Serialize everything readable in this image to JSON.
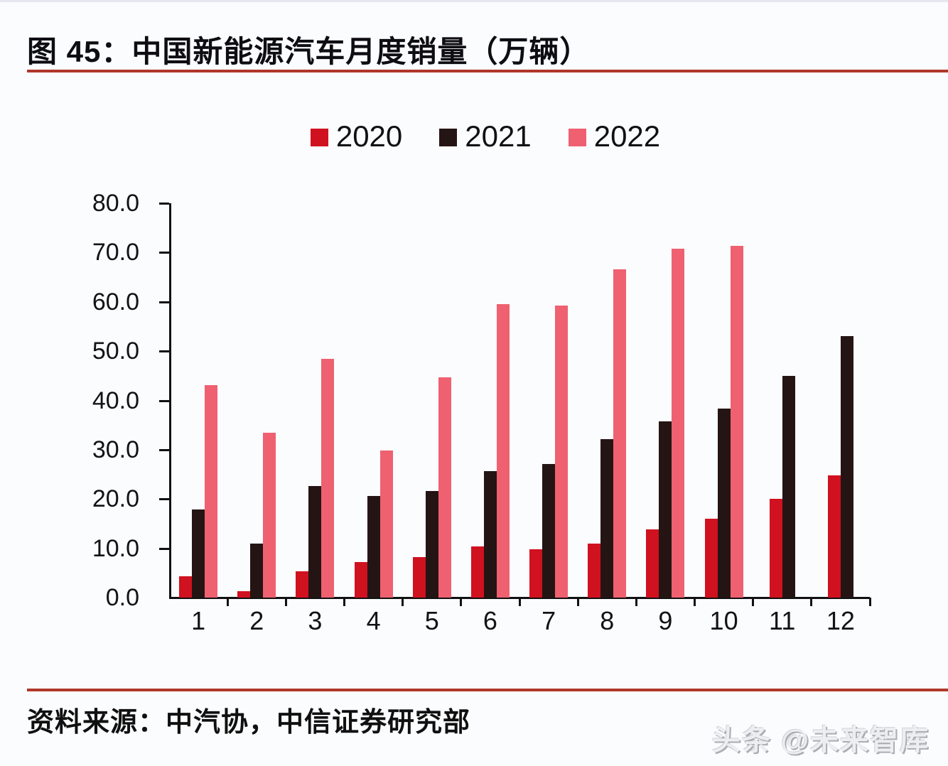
{
  "figure": {
    "title": "图 45：中国新能源汽车月度销量（万辆）",
    "source": "资料来源：中汽协，中信证券研究部",
    "watermark": "头条 @未来智库",
    "accent_rule_color": "#AF382A",
    "axis_color": "#141414",
    "background_color": "#fbfcfe"
  },
  "chart_data": {
    "type": "bar",
    "title": "中国新能源汽车月度销量（万辆）",
    "unit": "万辆",
    "categories": [
      "1",
      "2",
      "3",
      "4",
      "5",
      "6",
      "7",
      "8",
      "9",
      "10",
      "11",
      "12"
    ],
    "series": [
      {
        "name": "2020",
        "color": "#D0111F",
        "values": [
          4.4,
          1.3,
          5.3,
          7.2,
          8.2,
          10.4,
          9.8,
          10.9,
          13.8,
          16.0,
          20.0,
          24.8
        ]
      },
      {
        "name": "2021",
        "color": "#241514",
        "values": [
          17.9,
          11.0,
          22.6,
          20.6,
          21.7,
          25.6,
          27.1,
          32.1,
          35.7,
          38.3,
          45.0,
          53.1
        ]
      },
      {
        "name": "2022",
        "color": "#EF6170",
        "values": [
          43.1,
          33.4,
          48.4,
          29.9,
          44.7,
          59.6,
          59.3,
          66.6,
          70.8,
          71.4,
          null,
          null
        ]
      }
    ],
    "ylim": [
      0,
      80
    ],
    "y_ticks": [
      "0.0",
      "10.0",
      "20.0",
      "30.0",
      "40.0",
      "50.0",
      "60.0",
      "70.0",
      "80.0"
    ],
    "xlabel": "",
    "ylabel": "",
    "legend_position": "top",
    "grid": false
  }
}
